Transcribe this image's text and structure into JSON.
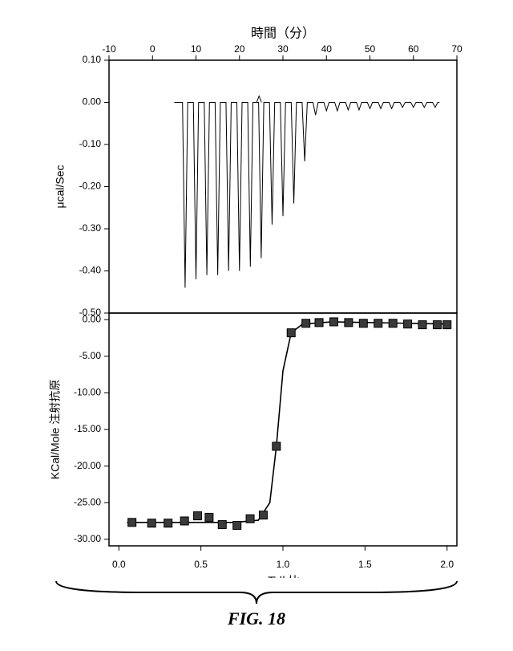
{
  "figure": {
    "caption": "FIG. 18",
    "background_color": "#ffffff",
    "axis_color": "#000000",
    "text_color": "#000000",
    "font_family": "Arial",
    "title_fontsize": 16,
    "label_fontsize": 14,
    "tick_fontsize": 12,
    "top_chart": {
      "type": "line-spikes",
      "x_axis": {
        "label": "時間（分）",
        "position": "top",
        "lim": [
          -10,
          70
        ],
        "ticks": [
          -10,
          0,
          10,
          20,
          30,
          40,
          50,
          60,
          70
        ]
      },
      "y_axis": {
        "label": "μcal/Sec",
        "lim": [
          -0.5,
          0.1
        ],
        "ticks": [
          -0.5,
          -0.4,
          -0.3,
          -0.2,
          -0.1,
          0.0,
          0.1
        ],
        "tick_labels": [
          "-0.50",
          "-0.40",
          "-0.30",
          "-0.20",
          "-0.10",
          "0.00",
          "0.10"
        ]
      },
      "baseline_y": 0.0,
      "trace_color": "#000000",
      "trace_width": 1.0,
      "spikes": [
        {
          "x": 7.5,
          "depth": -0.44
        },
        {
          "x": 10.0,
          "depth": -0.42
        },
        {
          "x": 12.5,
          "depth": -0.41
        },
        {
          "x": 15.0,
          "depth": -0.41
        },
        {
          "x": 17.5,
          "depth": -0.4
        },
        {
          "x": 20.0,
          "depth": -0.4
        },
        {
          "x": 22.5,
          "depth": -0.39
        },
        {
          "x": 25.0,
          "depth": -0.37
        },
        {
          "x": 27.5,
          "depth": -0.29
        },
        {
          "x": 30.0,
          "depth": -0.27
        },
        {
          "x": 32.5,
          "depth": -0.24
        },
        {
          "x": 35.0,
          "depth": -0.14
        },
        {
          "x": 37.5,
          "depth": -0.03
        },
        {
          "x": 40.0,
          "depth": -0.02
        },
        {
          "x": 42.5,
          "depth": -0.02
        },
        {
          "x": 45.0,
          "depth": -0.018
        },
        {
          "x": 47.5,
          "depth": -0.018
        },
        {
          "x": 50.0,
          "depth": -0.015
        },
        {
          "x": 52.5,
          "depth": -0.015
        },
        {
          "x": 55.0,
          "depth": -0.015
        },
        {
          "x": 57.5,
          "depth": -0.012
        },
        {
          "x": 60.0,
          "depth": -0.012
        },
        {
          "x": 62.5,
          "depth": -0.012
        },
        {
          "x": 65.0,
          "depth": -0.012
        }
      ],
      "spike_half_width": 0.6,
      "small_bump_x": 24.5,
      "small_bump_y": 0.015,
      "data_start_x": 5,
      "data_end_x": 66
    },
    "bottom_chart": {
      "type": "scatter-fit",
      "x_axis": {
        "label": "モル比",
        "lim": [
          0.0,
          2.0
        ],
        "ticks": [
          0.0,
          0.5,
          1.0,
          1.5,
          2.0
        ],
        "tick_labels": [
          "0.0",
          "0.5",
          "1.0",
          "1.5",
          "2.0"
        ]
      },
      "y_axis": {
        "label": "KCal/Mole 注射抗原",
        "lim": [
          -30.0,
          0.0
        ],
        "ticks": [
          -30.0,
          -25.0,
          -20.0,
          -15.0,
          -10.0,
          -5.0,
          0.0
        ],
        "tick_labels": [
          "-30.00",
          "-25.00",
          "-20.00",
          "-15.00",
          "-10.00",
          "-5.00",
          "0.00"
        ]
      },
      "marker_color": "#3a3a3a",
      "marker_border": "#000000",
      "marker_size": 10,
      "fit_color": "#000000",
      "fit_width": 1.6,
      "points": [
        {
          "x": 0.08,
          "y": -27.7
        },
        {
          "x": 0.2,
          "y": -27.8
        },
        {
          "x": 0.3,
          "y": -27.8
        },
        {
          "x": 0.4,
          "y": -27.5
        },
        {
          "x": 0.48,
          "y": -26.8
        },
        {
          "x": 0.55,
          "y": -27.0
        },
        {
          "x": 0.63,
          "y": -28.0
        },
        {
          "x": 0.72,
          "y": -28.1
        },
        {
          "x": 0.8,
          "y": -27.2
        },
        {
          "x": 0.88,
          "y": -26.7
        },
        {
          "x": 0.96,
          "y": -17.3
        },
        {
          "x": 1.05,
          "y": -1.8
        },
        {
          "x": 1.14,
          "y": -0.5
        },
        {
          "x": 1.22,
          "y": -0.4
        },
        {
          "x": 1.31,
          "y": -0.3
        },
        {
          "x": 1.4,
          "y": -0.4
        },
        {
          "x": 1.49,
          "y": -0.5
        },
        {
          "x": 1.58,
          "y": -0.5
        },
        {
          "x": 1.67,
          "y": -0.5
        },
        {
          "x": 1.76,
          "y": -0.6
        },
        {
          "x": 1.85,
          "y": -0.7
        },
        {
          "x": 1.94,
          "y": -0.7
        },
        {
          "x": 2.0,
          "y": -0.7
        }
      ],
      "fit_line": [
        {
          "x": 0.05,
          "y": -27.7
        },
        {
          "x": 0.7,
          "y": -27.7
        },
        {
          "x": 0.85,
          "y": -27.4
        },
        {
          "x": 0.92,
          "y": -25.0
        },
        {
          "x": 0.96,
          "y": -17.3
        },
        {
          "x": 1.0,
          "y": -7.0
        },
        {
          "x": 1.05,
          "y": -1.8
        },
        {
          "x": 1.12,
          "y": -0.6
        },
        {
          "x": 1.3,
          "y": -0.3
        },
        {
          "x": 2.0,
          "y": -0.6
        }
      ]
    }
  }
}
